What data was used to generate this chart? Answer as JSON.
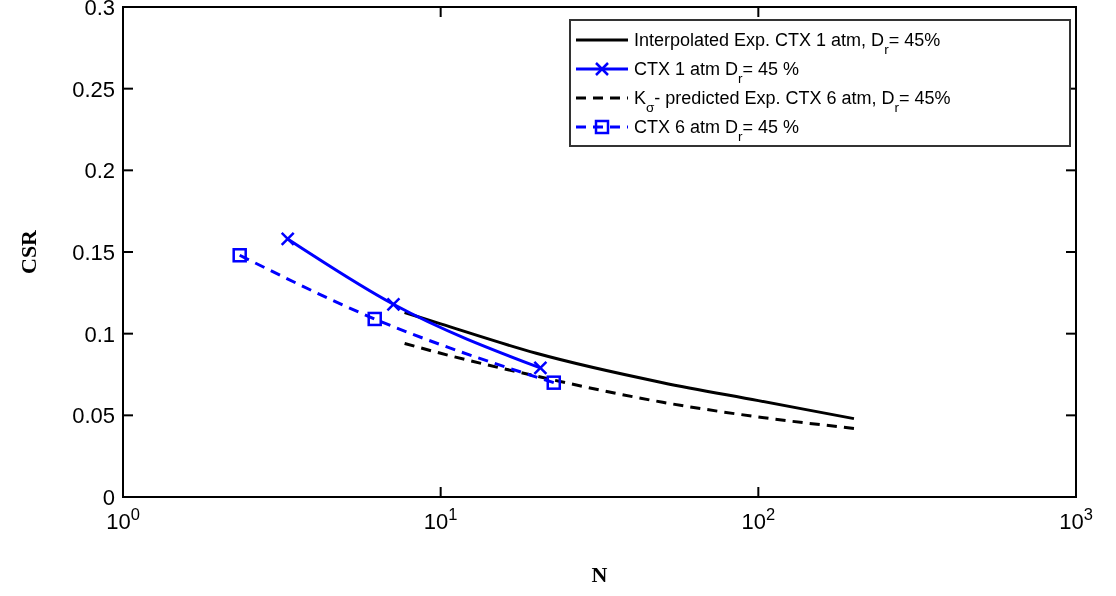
{
  "chart_data": {
    "type": "line",
    "xlabel": "N",
    "ylabel": "CSR",
    "log": "x",
    "xlim": [
      1,
      1000
    ],
    "ylim": [
      0,
      0.3
    ],
    "xticks": [
      {
        "value": 1,
        "label": "10$^{0}$"
      },
      {
        "value": 10,
        "label": "10$^{1}$"
      },
      {
        "value": 100,
        "label": "10$^{2}$"
      },
      {
        "value": 1000,
        "label": "10$^{3}$"
      }
    ],
    "yticks": [
      0,
      0.05,
      0.1,
      0.15,
      0.2,
      0.25,
      0.3
    ],
    "grid": false,
    "legend": "top right",
    "series": [
      {
        "name": "Interpolated Exp. CTX 1 atm, D$_{r}$= 45%",
        "color": "#000000",
        "line_style": "solid",
        "marker": "none",
        "x": [
          7.7,
          10,
          20,
          50,
          100,
          200
        ],
        "values": [
          0.113,
          0.106,
          0.088,
          0.07,
          0.059,
          0.048
        ]
      },
      {
        "name": "CTX 1 atm D$_{r}$= 45 %",
        "color": "#0000ff",
        "line_style": "solid",
        "marker": "cross",
        "x": [
          3.3,
          7.1,
          20.6
        ],
        "values": [
          0.158,
          0.118,
          0.079
        ]
      },
      {
        "name": "K$_{σ}$- predicted Exp. CTX 6 atm, D$_{r}$= 45%",
        "color": "#000000",
        "line_style": "dashed",
        "marker": "none",
        "x": [
          7.7,
          10,
          20,
          50,
          100,
          200
        ],
        "values": [
          0.094,
          0.088,
          0.074,
          0.058,
          0.049,
          0.042
        ]
      },
      {
        "name": "CTX 6 atm D$_{r}$= 45 %",
        "color": "#0000ff",
        "line_style": "dashed",
        "marker": "square",
        "x": [
          2.33,
          6.2,
          22.7
        ],
        "values": [
          0.148,
          0.109,
          0.07
        ]
      }
    ]
  }
}
